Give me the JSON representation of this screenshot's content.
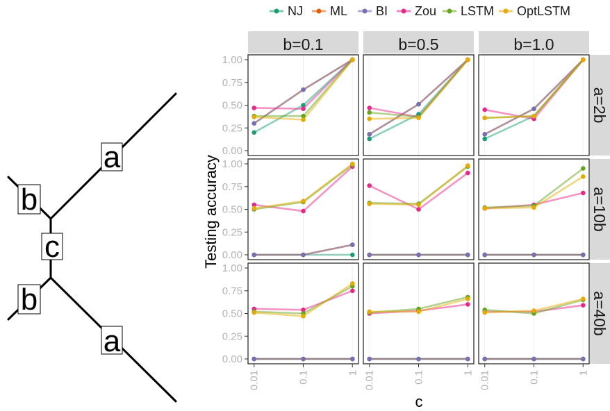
{
  "tree": {
    "labels": [
      "b",
      "a",
      "c",
      "b",
      "a"
    ]
  },
  "chart_data": {
    "type": "line",
    "xlabel": "c",
    "ylabel": "Testing accuracy",
    "x_categories": [
      "0.01",
      "0.1",
      "1"
    ],
    "y_ticks": [
      "0.00",
      "0.25",
      "0.50",
      "0.75",
      "1.00"
    ],
    "ylim": [
      0,
      1
    ],
    "legend_position": "top",
    "col_facets": [
      "b=0.1",
      "b=0.5",
      "b=1.0"
    ],
    "row_facets": [
      "a=2b",
      "a=10b",
      "a=40b"
    ],
    "series": [
      {
        "name": "NJ",
        "color": "#1b9e77"
      },
      {
        "name": "ML",
        "color": "#d95f02"
      },
      {
        "name": "BI",
        "color": "#7570b3"
      },
      {
        "name": "Zou",
        "color": "#e7298a"
      },
      {
        "name": "LSTM",
        "color": "#66a61e"
      },
      {
        "name": "OptLSTM",
        "color": "#e6ab02"
      }
    ],
    "panels": [
      [
        {
          "NJ": [
            0.2,
            0.5,
            1.0
          ],
          "ML": [
            0.3,
            0.67,
            1.0
          ],
          "BI": [
            0.3,
            0.67,
            1.0
          ],
          "Zou": [
            0.47,
            0.46,
            1.0
          ],
          "LSTM": [
            0.38,
            0.38,
            1.0
          ],
          "OptLSTM": [
            0.37,
            0.34,
            1.0
          ]
        },
        {
          "NJ": [
            0.13,
            0.4,
            1.0
          ],
          "ML": [
            0.18,
            0.51,
            1.0
          ],
          "BI": [
            0.18,
            0.51,
            1.0
          ],
          "Zou": [
            0.47,
            0.37,
            1.0
          ],
          "LSTM": [
            0.42,
            0.37,
            1.0
          ],
          "OptLSTM": [
            0.35,
            0.36,
            1.0
          ]
        },
        {
          "NJ": [
            0.13,
            0.38,
            1.0
          ],
          "ML": [
            0.18,
            0.46,
            1.0
          ],
          "BI": [
            0.18,
            0.46,
            1.0
          ],
          "Zou": [
            0.45,
            0.35,
            1.0
          ],
          "LSTM": [
            0.36,
            0.38,
            1.0
          ],
          "OptLSTM": [
            0.36,
            0.38,
            1.0
          ]
        }
      ],
      [
        {
          "NJ": [
            0.0,
            0.0,
            0.0
          ],
          "ML": [
            0.0,
            0.0,
            0.11
          ],
          "BI": [
            0.0,
            0.0,
            0.11
          ],
          "Zou": [
            0.55,
            0.48,
            0.97
          ],
          "LSTM": [
            0.5,
            0.58,
            0.99
          ],
          "OptLSTM": [
            0.51,
            0.59,
            1.0
          ]
        },
        {
          "NJ": [
            0.0,
            0.0,
            0.0
          ],
          "ML": [
            0.0,
            0.0,
            0.0
          ],
          "BI": [
            0.0,
            0.0,
            0.0
          ],
          "Zou": [
            0.76,
            0.5,
            0.9
          ],
          "LSTM": [
            0.57,
            0.56,
            0.97
          ],
          "OptLSTM": [
            0.56,
            0.55,
            0.98
          ]
        },
        {
          "NJ": [
            0.0,
            0.0,
            0.0
          ],
          "ML": [
            0.0,
            0.0,
            0.0
          ],
          "BI": [
            0.0,
            0.0,
            0.0
          ],
          "Zou": [
            0.51,
            0.55,
            0.68
          ],
          "LSTM": [
            0.52,
            0.54,
            0.95
          ],
          "OptLSTM": [
            0.51,
            0.52,
            0.86
          ]
        }
      ],
      [
        {
          "NJ": [
            0.0,
            0.0,
            0.0
          ],
          "ML": [
            0.0,
            0.0,
            0.0
          ],
          "BI": [
            0.0,
            0.0,
            0.0
          ],
          "Zou": [
            0.55,
            0.54,
            0.75
          ],
          "LSTM": [
            0.52,
            0.5,
            0.8
          ],
          "OptLSTM": [
            0.51,
            0.47,
            0.83
          ]
        },
        {
          "NJ": [
            0.0,
            0.0,
            0.0
          ],
          "ML": [
            0.0,
            0.0,
            0.0
          ],
          "BI": [
            0.0,
            0.0,
            0.0
          ],
          "Zou": [
            0.5,
            0.53,
            0.6
          ],
          "LSTM": [
            0.51,
            0.55,
            0.68
          ],
          "OptLSTM": [
            0.52,
            0.52,
            0.66
          ]
        },
        {
          "NJ": [
            0.0,
            0.0,
            0.0
          ],
          "ML": [
            0.0,
            0.0,
            0.0
          ],
          "BI": [
            0.0,
            0.0,
            0.0
          ],
          "Zou": [
            0.52,
            0.52,
            0.59
          ],
          "LSTM": [
            0.54,
            0.5,
            0.65
          ],
          "OptLSTM": [
            0.51,
            0.53,
            0.66
          ]
        }
      ]
    ]
  }
}
